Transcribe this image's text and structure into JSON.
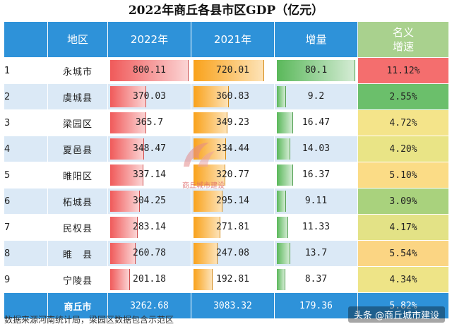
{
  "title": "2022年商丘各县市区GDP（亿元）",
  "headers": {
    "region": "地区",
    "y2022": "2022年",
    "y2021": "2021年",
    "increase": "增量",
    "growth_line1": "名义",
    "growth_line2": "增速"
  },
  "rows": [
    {
      "rank": "1",
      "region": "永城市",
      "y2022": "800.11",
      "y2021": "720.01",
      "increase": "80.1",
      "growth": "11.12%"
    },
    {
      "rank": "2",
      "region": "虞城县",
      "y2022": "370.03",
      "y2021": "360.83",
      "increase": "9.2",
      "growth": "2.55%"
    },
    {
      "rank": "3",
      "region": "梁园区",
      "y2022": "365.7",
      "y2021": "349.23",
      "increase": "16.47",
      "growth": "4.72%"
    },
    {
      "rank": "4",
      "region": "夏邑县",
      "y2022": "348.47",
      "y2021": "334.44",
      "increase": "14.03",
      "growth": "4.20%"
    },
    {
      "rank": "5",
      "region": "睢阳区",
      "y2022": "337.14",
      "y2021": "320.77",
      "increase": "16.37",
      "growth": "5.10%"
    },
    {
      "rank": "6",
      "region": "柘城县",
      "y2022": "304.25",
      "y2021": "295.14",
      "increase": "9.11",
      "growth": "3.09%"
    },
    {
      "rank": "7",
      "region": "民权县",
      "y2022": "283.14",
      "y2021": "271.81",
      "increase": "11.33",
      "growth": "4.17%"
    },
    {
      "rank": "8",
      "region": "睢　县",
      "y2022": "260.78",
      "y2021": "247.08",
      "increase": "13.7",
      "growth": "5.54%"
    },
    {
      "rank": "9",
      "region": "宁陵县",
      "y2022": "201.18",
      "y2021": "192.81",
      "increase": "8.37",
      "growth": "4.34%"
    }
  ],
  "total": {
    "region": "商丘市",
    "y2022": "3262.68",
    "y2021": "3083.32",
    "increase": "179.36",
    "growth": "5.82%"
  },
  "bar_max": {
    "gdp": 800.11,
    "increase": 80.1
  },
  "growth_colors": {
    "11.12%": "#f46e6e",
    "2.55%": "#6bbf6b",
    "4.72%": "#f4e48a",
    "4.20%": "#e9e486",
    "5.10%": "#fbdc86",
    "3.09%": "#a9d27d",
    "4.17%": "#e3e286",
    "5.54%": "#fbd583",
    "4.34%": "#eee487"
  },
  "watermark": "商丘城市建设",
  "source_note": "数据来源河南统计局，梁园区数据包含示范区",
  "brand": "头条 @商丘城市建设"
}
